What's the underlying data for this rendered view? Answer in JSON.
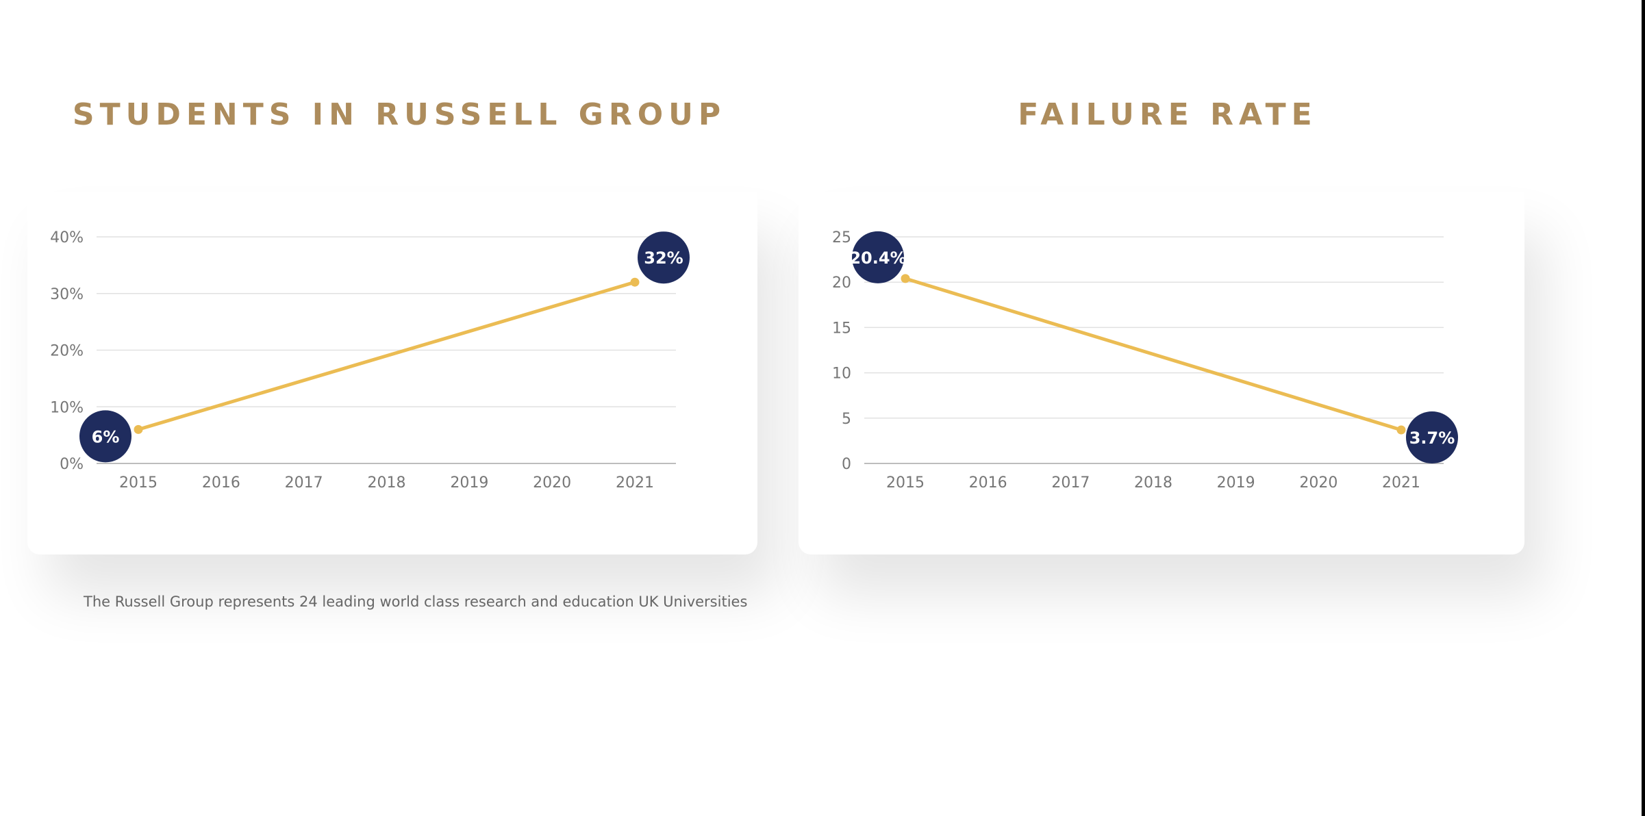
{
  "colors": {
    "title": "#ad8c5c",
    "line": "#ebbc53",
    "bubble": "#1f2c5e",
    "bubble_text": "#ffffff",
    "grid": "#e1e1e1",
    "axis": "#bdbdbd",
    "tick_text": "#767676"
  },
  "footnote": "The Russell Group represents 24 leading world class research and education UK Universities",
  "chart_data": [
    {
      "type": "line",
      "title": "STUDENTS IN RUSSELL GROUP",
      "categories": [
        "2015",
        "2016",
        "2017",
        "2018",
        "2019",
        "2020",
        "2021"
      ],
      "x": [
        2015,
        2021
      ],
      "values": [
        6,
        32
      ],
      "y_ticks": [
        "0%",
        "10%",
        "20%",
        "30%",
        "40%"
      ],
      "ylim": [
        0,
        40
      ],
      "point_labels": [
        "6%",
        "32%"
      ],
      "grid": true,
      "legend": "none"
    },
    {
      "type": "line",
      "title": "FAILURE RATE",
      "categories": [
        "2015",
        "2016",
        "2017",
        "2018",
        "2019",
        "2020",
        "2021"
      ],
      "x": [
        2015,
        2021
      ],
      "values": [
        20.4,
        3.7
      ],
      "y_ticks": [
        "0",
        "5",
        "10",
        "15",
        "20",
        "25"
      ],
      "ylim": [
        0,
        25
      ],
      "point_labels": [
        "20.4%",
        "3.7%"
      ],
      "grid": true,
      "legend": "none"
    }
  ]
}
